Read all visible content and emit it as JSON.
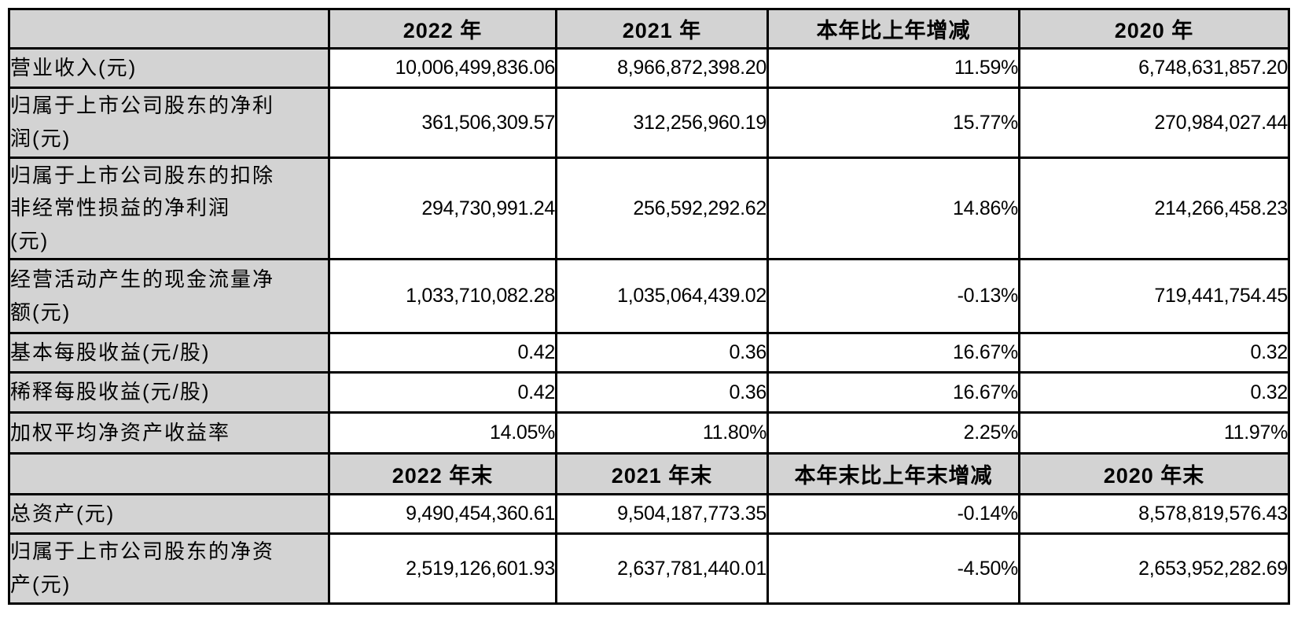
{
  "colors": {
    "header_bg": "#d3d3d3",
    "border": "#000000",
    "text": "#000000",
    "value_bg": "#ffffff"
  },
  "table": {
    "description": "key-financial-indicators-summary",
    "rows": [
      {
        "type": "header",
        "cells": [
          "",
          "2022 年",
          "2021 年",
          "本年比上年增减",
          "2020 年"
        ]
      },
      {
        "type": "data",
        "cells": [
          "营业收入(元)",
          "10,006,499,836.06",
          "8,966,872,398.20",
          "11.59%",
          "6,748,631,857.20"
        ]
      },
      {
        "type": "data",
        "cells": [
          "归属于上市公司股东的净利\n润(元)",
          "361,506,309.57",
          "312,256,960.19",
          "15.77%",
          "270,984,027.44"
        ]
      },
      {
        "type": "data",
        "cells": [
          "归属于上市公司股东的扣除\n非经常性损益的净利润\n(元)",
          "294,730,991.24",
          "256,592,292.62",
          "14.86%",
          "214,266,458.23"
        ]
      },
      {
        "type": "data",
        "cells": [
          "经营活动产生的现金流量净\n额(元)",
          "1,033,710,082.28",
          "1,035,064,439.02",
          "-0.13%",
          "719,441,754.45"
        ]
      },
      {
        "type": "data",
        "cells": [
          "基本每股收益(元/股)",
          "0.42",
          "0.36",
          "16.67%",
          "0.32"
        ]
      },
      {
        "type": "data",
        "cells": [
          "稀释每股收益(元/股)",
          "0.42",
          "0.36",
          "16.67%",
          "0.32"
        ]
      },
      {
        "type": "data",
        "cells": [
          "加权平均净资产收益率",
          "14.05%",
          "11.80%",
          "2.25%",
          "11.97%"
        ]
      },
      {
        "type": "header",
        "cells": [
          "",
          "2022 年末",
          "2021 年末",
          "本年末比上年末增减",
          "2020 年末"
        ]
      },
      {
        "type": "data",
        "cells": [
          "总资产(元)",
          "9,490,454,360.61",
          "9,504,187,773.35",
          "-0.14%",
          "8,578,819,576.43"
        ]
      },
      {
        "type": "data",
        "cells": [
          "归属于上市公司股东的净资\n产(元)",
          "2,519,126,601.93",
          "2,637,781,440.01",
          "-4.50%",
          "2,653,952,282.69"
        ]
      }
    ]
  }
}
